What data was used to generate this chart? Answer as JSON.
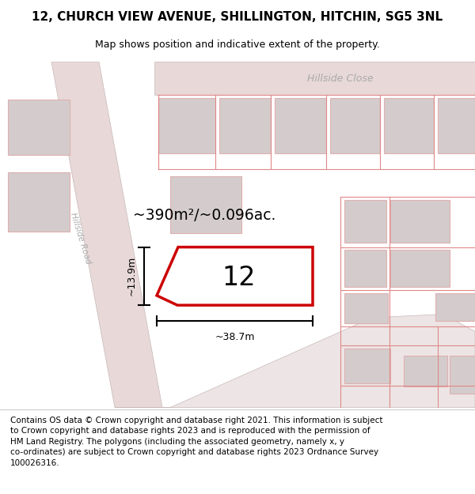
{
  "title": "12, CHURCH VIEW AVENUE, SHILLINGTON, HITCHIN, SG5 3NL",
  "subtitle": "Map shows position and indicative extent of the property.",
  "footer_text": "Contains OS data © Crown copyright and database right 2021. This information is subject\nto Crown copyright and database rights 2023 and is reproduced with the permission of\nHM Land Registry. The polygons (including the associated geometry, namely x, y\nco-ordinates) are subject to Crown copyright and database rights 2023 Ordnance Survey\n100026316.",
  "area_text": "~390m²/~0.096ac.",
  "width_label": "~38.7m",
  "height_label": "~13.9m",
  "plot_number": "12",
  "street_label1": "Hillside Road",
  "street_label2": "Hillside Close",
  "title_fontsize": 11,
  "subtitle_fontsize": 9,
  "footer_fontsize": 7.5,
  "road_fill": "#e8d8d8",
  "road_edge": "#c8b8b8",
  "building_fill": "#d4cccc",
  "building_edge": "#e0b0b0",
  "cad_line_color": "#e08888",
  "highlight_color": "#cc0000",
  "map_bg": "#faf5f5",
  "label_color": "#aaaaaa"
}
